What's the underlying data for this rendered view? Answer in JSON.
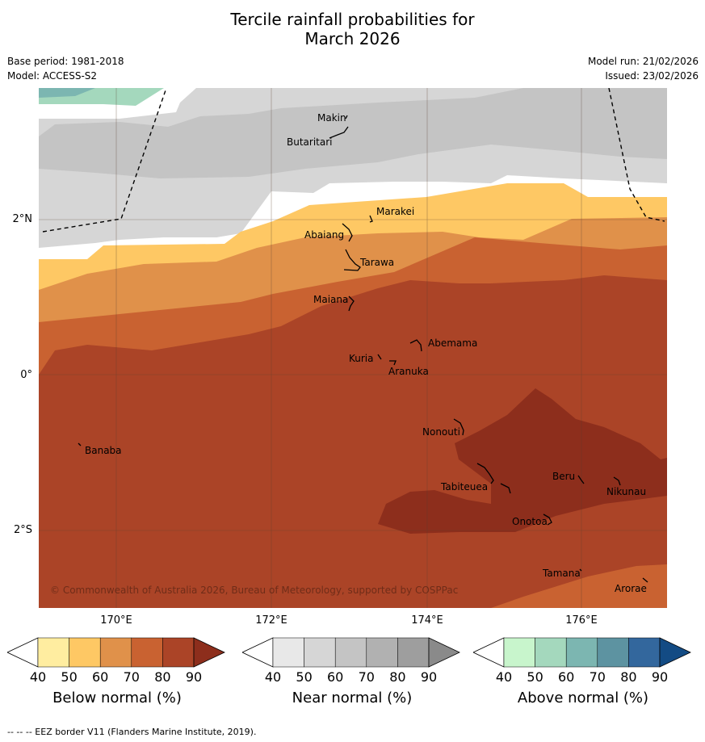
{
  "title": {
    "line1": "Tercile rainfall probabilities for",
    "line2": "March 2026"
  },
  "meta": {
    "base_period": "Base period: 1981-2018",
    "model": "Model: ACCESS-S2",
    "model_run": "Model run: 21/02/2026",
    "issued": "Issued: 23/02/2026"
  },
  "axes": {
    "lat_labels": [
      "2°N",
      "0°",
      "2°S"
    ],
    "lon_labels": [
      "170°E",
      "172°E",
      "174°E",
      "176°E"
    ]
  },
  "places": [
    "Makin",
    "Butaritari",
    "Marakei",
    "Abaiang",
    "Tarawa",
    "Maiana",
    "Abemama",
    "Kuria",
    "Aranuka",
    "Banaba",
    "Nonouti",
    "Tabiteuea",
    "Beru",
    "Nikunau",
    "Onotoa",
    "Tamana",
    "Arorae"
  ],
  "copyright": "© Commonwealth of Australia 2026, Bureau of Meteorology, supported by COSPPac",
  "colorbars": [
    {
      "label": "Below normal (%)",
      "ticks": [
        "40",
        "50",
        "60",
        "70",
        "80",
        "90"
      ],
      "colors": [
        "#ffffff",
        "#ffeda0",
        "#fec864",
        "#e0914a",
        "#c96231",
        "#ab4427",
        "#8d2e1c"
      ]
    },
    {
      "label": "Near normal (%)",
      "ticks": [
        "40",
        "50",
        "60",
        "70",
        "80",
        "90"
      ],
      "colors": [
        "#ffffff",
        "#e8e8e8",
        "#d6d6d6",
        "#c4c4c4",
        "#b1b1b1",
        "#9e9e9e",
        "#8a8a8a"
      ]
    },
    {
      "label": "Above normal (%)",
      "ticks": [
        "40",
        "50",
        "60",
        "70",
        "80",
        "90"
      ],
      "colors": [
        "#ffffff",
        "#c8f5cc",
        "#a4d8bd",
        "#7cb6b1",
        "#5d93a1",
        "#33679d",
        "#134b84"
      ]
    }
  ],
  "footer": "--  --  -- EEZ border V11 (Flanders Marine Institute, 2019)."
}
